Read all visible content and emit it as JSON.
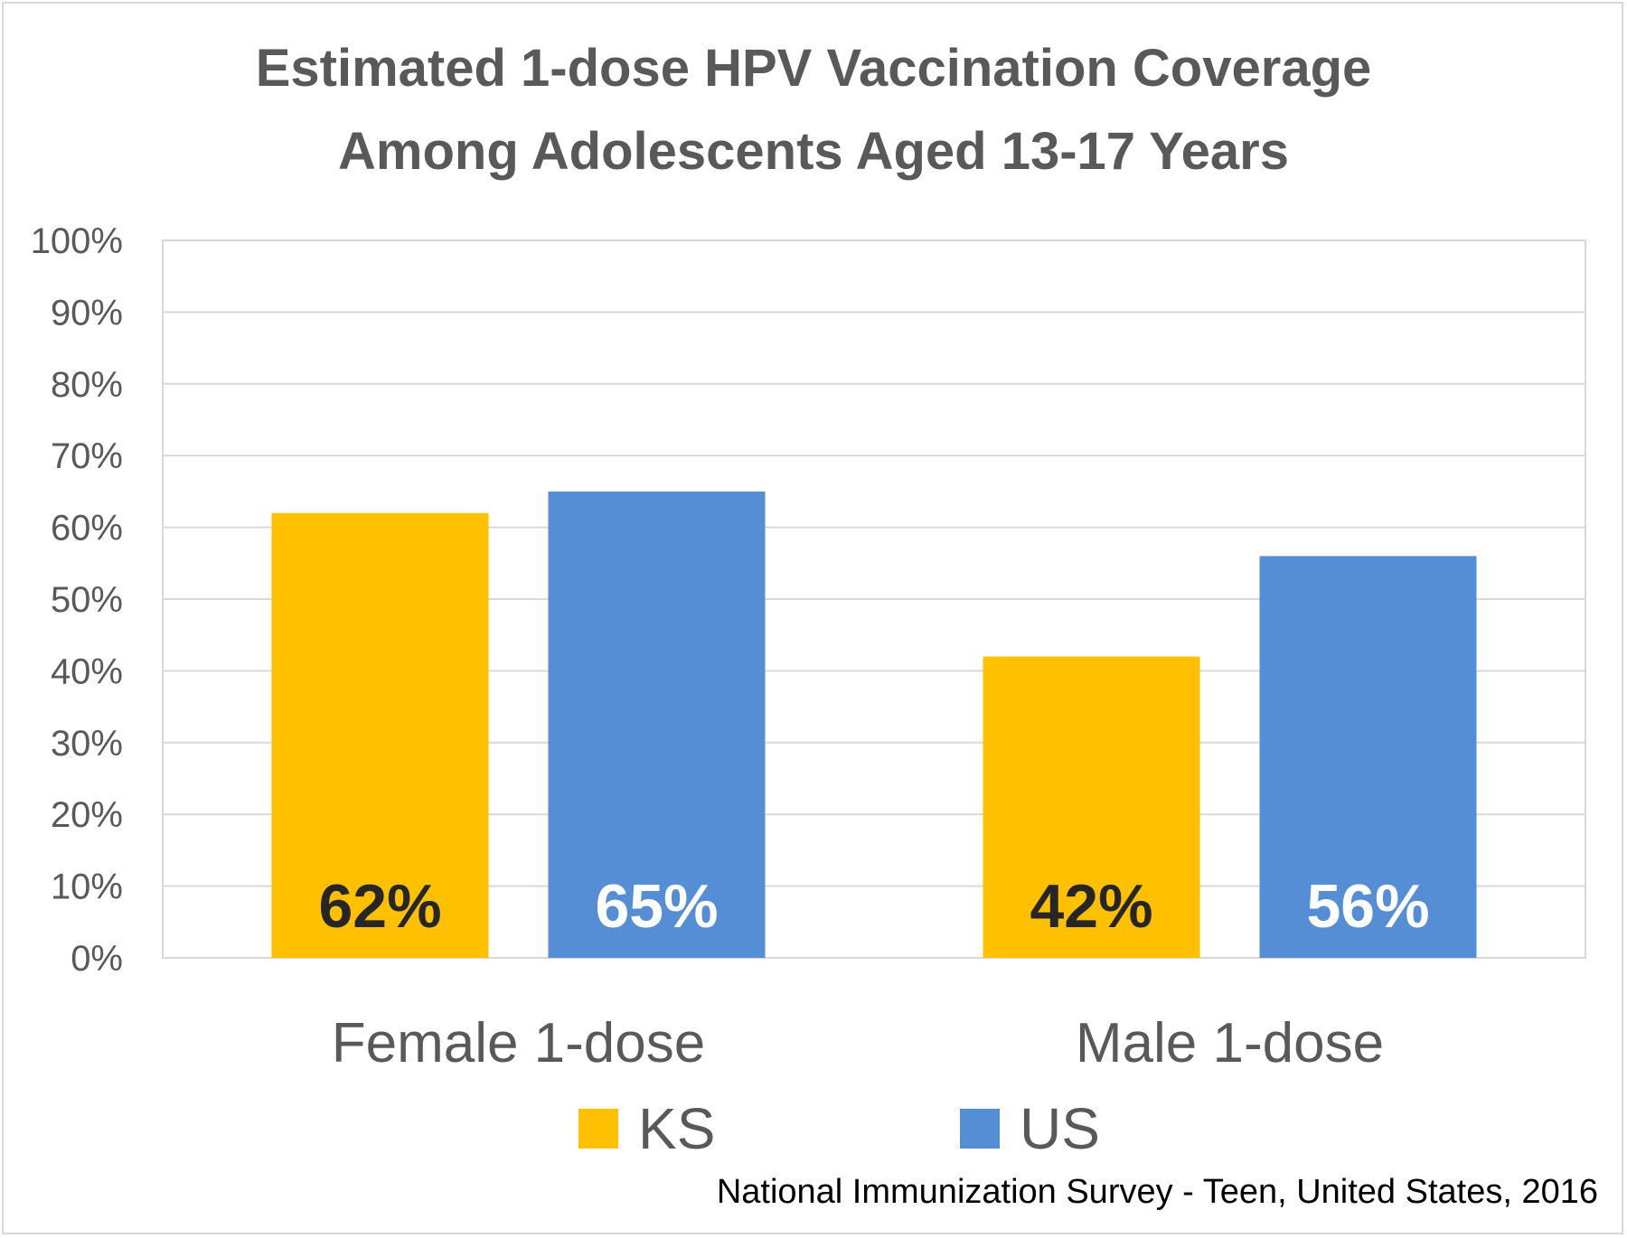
{
  "chart_data": {
    "type": "bar",
    "title": "Estimated 1-dose HPV Vaccination Coverage Among Adolescents Aged 13-17 Years",
    "title_lines": [
      "Estimated 1-dose HPV Vaccination Coverage",
      "Among Adolescents Aged 13-17 Years"
    ],
    "categories": [
      "Female 1-dose",
      "Male 1-dose"
    ],
    "series": [
      {
        "name": "KS",
        "values": [
          62,
          42
        ],
        "labels": [
          "62%",
          "42%"
        ],
        "color": "#ffc000",
        "label_color": "#262626"
      },
      {
        "name": "US",
        "values": [
          65,
          56
        ],
        "labels": [
          "65%",
          "56%"
        ],
        "color": "#558ed5",
        "label_color": "#ffffff"
      }
    ],
    "ylim": [
      0,
      100
    ],
    "yticks": [
      "0%",
      "10%",
      "20%",
      "30%",
      "40%",
      "50%",
      "60%",
      "70%",
      "80%",
      "90%",
      "100%"
    ],
    "grid": true,
    "legend": "bottom",
    "source": "National Immunization Survey - Teen, United States, 2016",
    "colors": {
      "gridline": "#d9d9d9",
      "axis_text": "#595959",
      "title": "#595959"
    }
  }
}
